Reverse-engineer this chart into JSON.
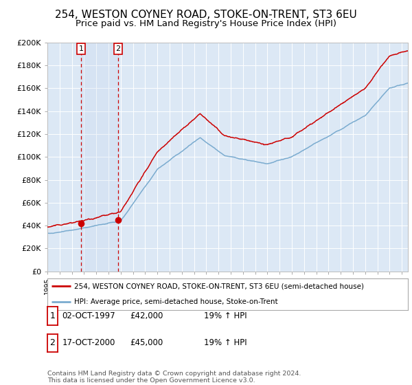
{
  "title": "254, WESTON COYNEY ROAD, STOKE-ON-TRENT, ST3 6EU",
  "subtitle": "Price paid vs. HM Land Registry's House Price Index (HPI)",
  "ylim": [
    0,
    200000
  ],
  "yticks": [
    0,
    20000,
    40000,
    60000,
    80000,
    100000,
    120000,
    140000,
    160000,
    180000,
    200000
  ],
  "ytick_labels": [
    "£0",
    "£20K",
    "£40K",
    "£60K",
    "£80K",
    "£100K",
    "£120K",
    "£140K",
    "£160K",
    "£180K",
    "£200K"
  ],
  "background_color": "#ffffff",
  "plot_bg_color": "#dce8f5",
  "grid_color": "#ffffff",
  "red_line_color": "#cc0000",
  "blue_line_color": "#7aabcf",
  "transaction1_date": 1997.75,
  "transaction1_price": 42000,
  "transaction2_date": 2000.79,
  "transaction2_price": 45000,
  "legend_label_red": "254, WESTON COYNEY ROAD, STOKE-ON-TRENT, ST3 6EU (semi-detached house)",
  "legend_label_blue": "HPI: Average price, semi-detached house, Stoke-on-Trent",
  "table_rows": [
    [
      "1",
      "02-OCT-1997",
      "£42,000",
      "19% ↑ HPI"
    ],
    [
      "2",
      "17-OCT-2000",
      "£45,000",
      "19% ↑ HPI"
    ]
  ],
  "footer": "Contains HM Land Registry data © Crown copyright and database right 2024.\nThis data is licensed under the Open Government Licence v3.0.",
  "title_fontsize": 11,
  "subtitle_fontsize": 9.5,
  "tick_fontsize": 8
}
